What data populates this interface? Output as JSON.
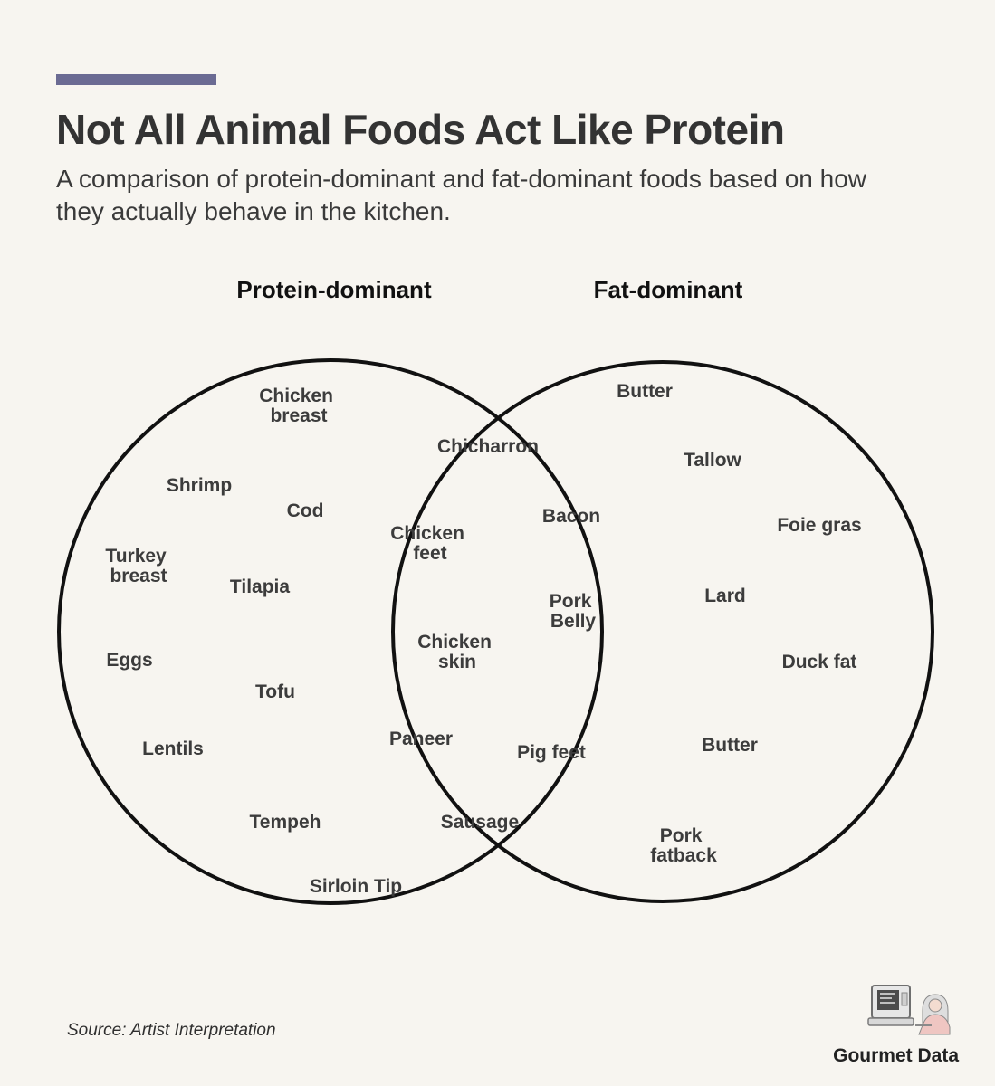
{
  "header": {
    "title": "Not All Animal Foods Act Like Protein",
    "subtitle": "A comparison of protein-dominant and fat-dominant foods based on how they actually behave in the kitchen."
  },
  "venn": {
    "sets": [
      {
        "label": "Protein-dominant"
      },
      {
        "label": "Fat-dominant"
      }
    ],
    "protein_only": [
      [
        "Chicken",
        "breast"
      ],
      [
        "Shrimp"
      ],
      [
        "Cod"
      ],
      [
        "Turkey",
        "breast"
      ],
      [
        "Tilapia"
      ],
      [
        "Eggs"
      ],
      [
        "Tofu"
      ],
      [
        "Lentils"
      ],
      [
        "Tempeh"
      ],
      [
        "Sirloin Tip"
      ]
    ],
    "both": [
      [
        "Chicharron"
      ],
      [
        "Chicken",
        "feet"
      ],
      [
        "Bacon"
      ],
      [
        "Pork",
        "Belly"
      ],
      [
        "Chicken",
        "skin"
      ],
      [
        "Paneer"
      ],
      [
        "Pig feet"
      ],
      [
        "Sausage"
      ]
    ],
    "fat_only": [
      [
        "Butter"
      ],
      [
        "Tallow"
      ],
      [
        "Foie gras"
      ],
      [
        "Lard"
      ],
      [
        "Duck fat"
      ],
      [
        "Butter"
      ],
      [
        "Pork",
        "fatback"
      ]
    ]
  },
  "footer": {
    "source": "Source: Artist Interpretation",
    "brand": "Gourmet Data",
    "logo_icon": "computer-and-person-icon"
  },
  "colors": {
    "accent": "#6b6b93",
    "background": "#f7f5f0"
  }
}
